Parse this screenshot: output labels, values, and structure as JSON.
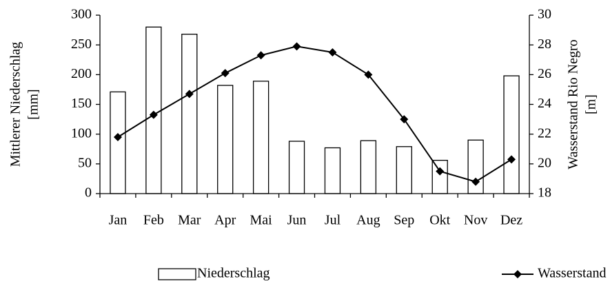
{
  "chart_data": {
    "type": "bar_line",
    "categories": [
      "Jan",
      "Feb",
      "Mar",
      "Apr",
      "Mai",
      "Jun",
      "Jul",
      "Aug",
      "Sep",
      "Okt",
      "Nov",
      "Dez"
    ],
    "y_label": [
      "Mittlerer Niederschlag",
      "[mm]"
    ],
    "y2_label": [
      "Wasserstand Rio Negro",
      "[m]"
    ],
    "series": [
      {
        "name": "Niederschlag",
        "type": "bar",
        "color": "#ffffff",
        "values": [
          171,
          280,
          268,
          182,
          189,
          88,
          77,
          89,
          79,
          56,
          90,
          198
        ]
      },
      {
        "name": "Wasserstand",
        "type": "line",
        "axis": "y2",
        "color": "#000000",
        "values": [
          21.8,
          23.3,
          24.7,
          26.1,
          27.3,
          27.9,
          27.5,
          26.0,
          23.0,
          19.5,
          18.8,
          20.3
        ]
      }
    ],
    "ylim": [
      0,
      300
    ],
    "yticks": [
      0,
      50,
      100,
      150,
      200,
      250,
      300
    ],
    "y2lim": [
      18,
      30
    ],
    "y2ticks": [
      18,
      20,
      22,
      24,
      26,
      28,
      30
    ],
    "legend": "bottom"
  }
}
